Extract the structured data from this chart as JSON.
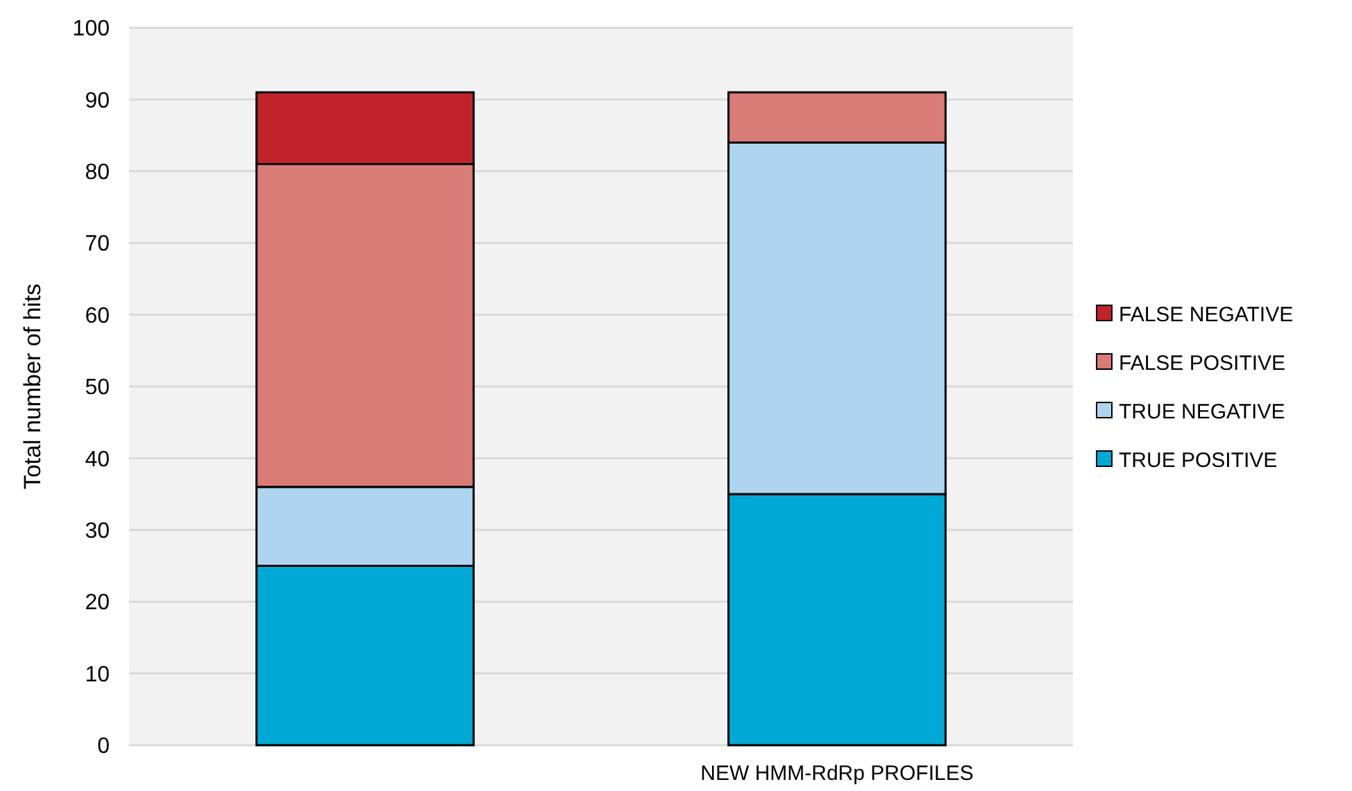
{
  "chart_data": {
    "type": "bar",
    "stacked": true,
    "ylabel": "Total number of hits",
    "categories": [
      null,
      "NEW HMM-RdRp PROFILES"
    ],
    "series": [
      {
        "name": "TRUE POSITIVE",
        "color": "#00a9d4",
        "values": [
          25,
          35
        ]
      },
      {
        "name": "TRUE NEGATIVE",
        "color": "#afd4ef",
        "values": [
          11,
          49
        ]
      },
      {
        "name": "FALSE POSITIVE",
        "color": "#d97b76",
        "values": [
          45,
          7
        ]
      },
      {
        "name": "FALSE NEGATIVE",
        "color": "#c0242a",
        "values": [
          10,
          0
        ]
      }
    ],
    "ylim": [
      0,
      100
    ],
    "yticks": [
      0,
      10,
      20,
      30,
      40,
      50,
      60,
      70,
      80,
      90,
      100
    ],
    "grid": "y",
    "legend": "right"
  }
}
